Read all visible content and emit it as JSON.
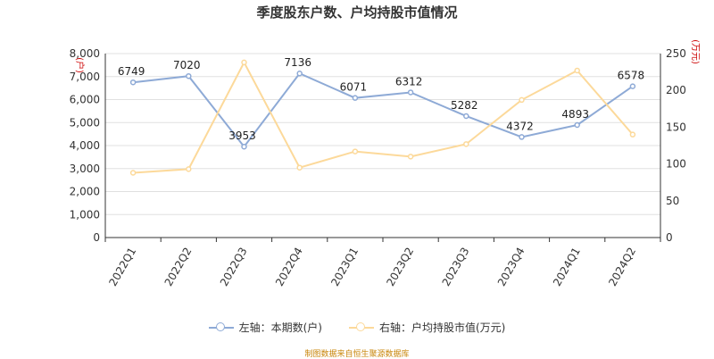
{
  "title": "季度股东户数、户均持股市值情况",
  "source": "制图数据来自恒生聚源数据库",
  "chart_data": {
    "type": "line",
    "title": "季度股东户数、户均持股市值情况",
    "categories": [
      "2022Q1",
      "2022Q2",
      "2022Q3",
      "2022Q4",
      "2023Q1",
      "2023Q2",
      "2023Q3",
      "2023Q4",
      "2024Q1",
      "2024Q2"
    ],
    "y_left": {
      "unit": "(户)",
      "ylim": [
        0,
        8000
      ],
      "ticks": [
        0,
        1000,
        2000,
        3000,
        4000,
        5000,
        6000,
        7000,
        8000
      ]
    },
    "y_right": {
      "unit": "(万元)",
      "ylim": [
        0,
        250
      ],
      "ticks": [
        0,
        50,
        100,
        150,
        200,
        250
      ]
    },
    "grid": true,
    "legend_position": "bottom",
    "series": [
      {
        "name": "左轴：本期数(户)",
        "axis": "left",
        "color": "#8eaad6",
        "show_labels": true,
        "values": [
          6749,
          7020,
          3953,
          7136,
          6071,
          6312,
          5282,
          4372,
          4893,
          6578
        ]
      },
      {
        "name": "右轴：户均持股市值(万元)",
        "axis": "right",
        "color": "#fcd99a",
        "show_labels": false,
        "values": [
          88,
          93,
          238,
          95,
          117,
          110,
          127,
          187,
          227,
          140
        ]
      }
    ]
  }
}
